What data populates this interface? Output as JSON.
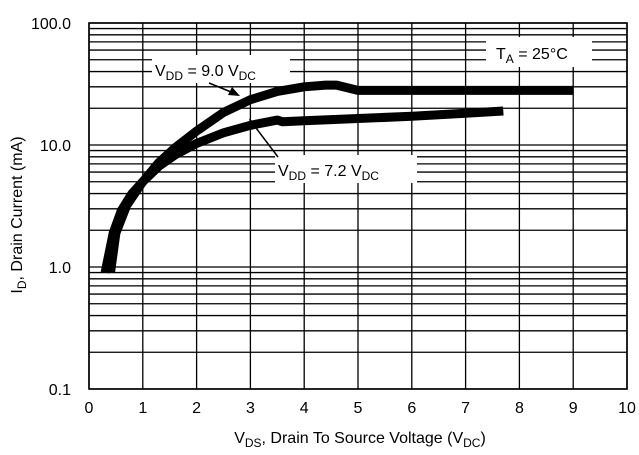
{
  "chart_data": {
    "type": "line",
    "title": "",
    "xlabel": {
      "main": "V",
      "sub": "DS",
      "rest": ", Drain To Source Voltage (V",
      "sub2": "DC",
      "end": ")"
    },
    "ylabel": {
      "main": "I",
      "sub": "D",
      "rest": ", Drain Current (mA)"
    },
    "xlim": [
      0,
      10
    ],
    "ylim": [
      0.1,
      100
    ],
    "yscale": "log",
    "grid": true,
    "x_ticks": [
      "0",
      "1",
      "2",
      "3",
      "4",
      "5",
      "6",
      "7",
      "8",
      "9",
      "10"
    ],
    "y_ticks": [
      "0.1",
      "1.0",
      "10.0",
      "100.0"
    ],
    "series": [
      {
        "id": "vdd90",
        "x": [
          0.4,
          0.5,
          0.7,
          1.0,
          1.3,
          1.6,
          2.0,
          2.5,
          3.0,
          3.5,
          4.0,
          4.4,
          4.6,
          5.0,
          6.0,
          7.0,
          8.0,
          9.0
        ],
        "y": [
          0.9,
          1.9,
          3.2,
          5.0,
          7.2,
          9.5,
          13.0,
          18.5,
          23.5,
          27.5,
          30.0,
          31.0,
          31.0,
          28.0,
          28.0,
          28.0,
          28.0,
          28.0
        ]
      },
      {
        "id": "vdd72",
        "x": [
          0.3,
          0.45,
          0.6,
          0.8,
          1.0,
          1.3,
          1.6,
          2.0,
          2.5,
          3.0,
          3.5,
          3.6,
          4.0,
          5.0,
          6.0,
          7.0,
          7.7
        ],
        "y": [
          0.9,
          1.9,
          2.9,
          4.0,
          5.0,
          6.7,
          8.3,
          10.3,
          12.6,
          14.5,
          16.0,
          15.5,
          15.8,
          16.5,
          17.2,
          18.2,
          19.0
        ]
      }
    ],
    "annotations": {
      "vdd90": {
        "v": "V",
        "sub": "DD",
        "mid": " = 9.0 V",
        "sub2": "DC"
      },
      "vdd72": {
        "v": "V",
        "sub": "DD",
        "mid": " = 7.2 V",
        "sub2": "DC"
      },
      "temp": {
        "t": "T",
        "sub": "A",
        "rest": " = 25°C"
      }
    }
  }
}
